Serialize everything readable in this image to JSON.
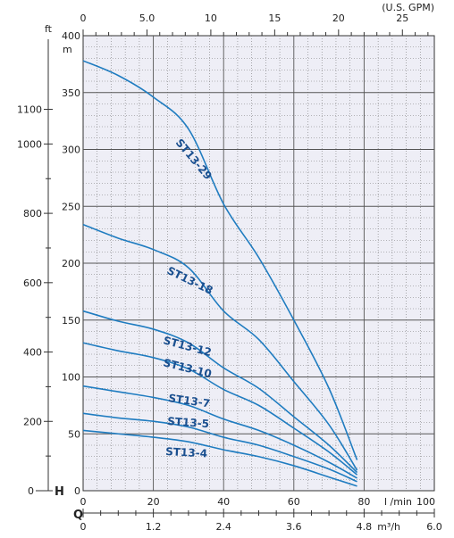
{
  "chart_data": {
    "type": "line",
    "colors": {
      "curve": "#1f7cc0",
      "label": "#1a4f8f",
      "plot_bg": "#eeeef6",
      "grid": "#555555"
    },
    "grid": true,
    "axes": {
      "bottom_lpm": {
        "unit": "l /min",
        "ticks": [
          0,
          20,
          40,
          60,
          80,
          100
        ],
        "range": [
          0,
          100
        ]
      },
      "bottom_m3h": {
        "label": "Q",
        "unit": "m³/h",
        "ticks": [
          "0",
          "1.2",
          "2.4",
          "3.6",
          "4.8",
          "6.0"
        ]
      },
      "top_gpm": {
        "unit": "(U.S. GPM)",
        "ticks": [
          "0",
          "5.0",
          "10",
          "15",
          "20",
          "25"
        ],
        "range": [
          0,
          27.5
        ]
      },
      "left_m": {
        "label": "H",
        "unit": "m",
        "ticks": [
          0,
          50,
          100,
          150,
          200,
          250,
          300,
          350,
          400
        ],
        "range": [
          0,
          400
        ]
      },
      "left_ft": {
        "unit": "ft",
        "ticks": [
          0,
          200,
          400,
          600,
          800,
          1000,
          1100
        ],
        "range": [
          0,
          1312
        ]
      }
    },
    "series": [
      {
        "name": "ST13-29",
        "x": [
          0,
          10,
          20,
          30,
          40,
          50,
          60,
          70,
          78
        ],
        "y": [
          378,
          365,
          346,
          318,
          252,
          205,
          150,
          90,
          27
        ]
      },
      {
        "name": "ST13-18",
        "x": [
          0,
          10,
          20,
          30,
          40,
          50,
          60,
          70,
          78
        ],
        "y": [
          234,
          222,
          212,
          196,
          158,
          133,
          96,
          58,
          18
        ]
      },
      {
        "name": "ST13-12",
        "x": [
          0,
          10,
          20,
          30,
          40,
          50,
          60,
          70,
          78
        ],
        "y": [
          158,
          149,
          142,
          130,
          108,
          90,
          65,
          40,
          16
        ]
      },
      {
        "name": "ST13-10",
        "x": [
          0,
          10,
          20,
          30,
          40,
          50,
          60,
          70,
          78
        ],
        "y": [
          130,
          123,
          117,
          107,
          89,
          75,
          55,
          34,
          14
        ]
      },
      {
        "name": "ST13-7",
        "x": [
          0,
          10,
          20,
          30,
          40,
          50,
          60,
          70,
          78
        ],
        "y": [
          92,
          87,
          82,
          75,
          63,
          53,
          40,
          25,
          11
        ]
      },
      {
        "name": "ST13-5",
        "x": [
          0,
          10,
          20,
          30,
          40,
          50,
          60,
          70,
          78
        ],
        "y": [
          68,
          64,
          61,
          56,
          47,
          40,
          30,
          19,
          8
        ]
      },
      {
        "name": "ST13-4",
        "x": [
          0,
          10,
          20,
          30,
          40,
          50,
          60,
          70,
          78
        ],
        "y": [
          53,
          50,
          47,
          43,
          36,
          30,
          22,
          12,
          4
        ]
      }
    ],
    "annotations": [
      {
        "text": "ST13-29"
      },
      {
        "text": "ST13-18"
      },
      {
        "text": "ST13-12"
      },
      {
        "text": "ST13-10"
      },
      {
        "text": "ST13-7"
      },
      {
        "text": "ST13-5"
      },
      {
        "text": "ST13-4"
      }
    ]
  }
}
